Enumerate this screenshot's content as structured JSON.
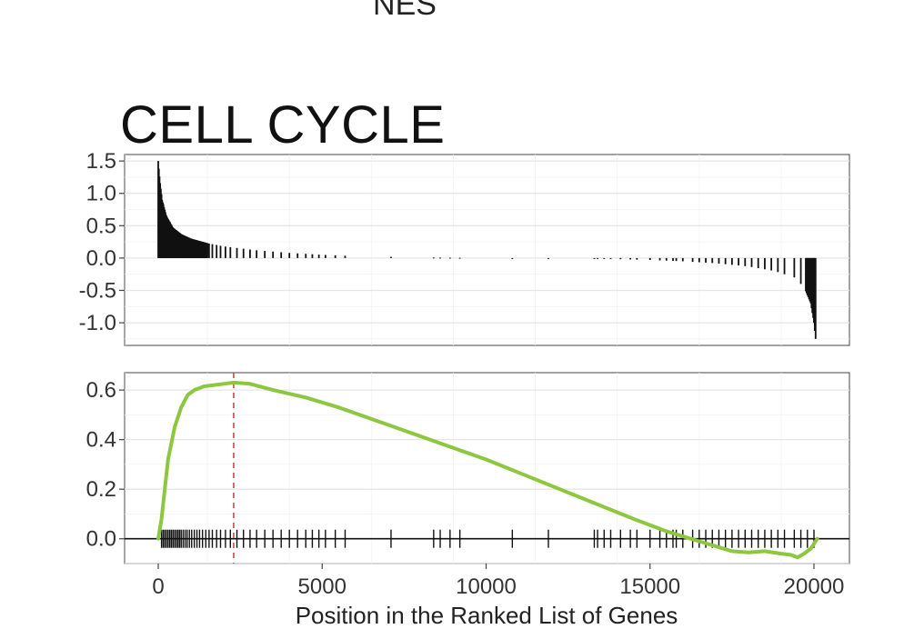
{
  "header": {
    "top_label": "NES"
  },
  "chart_data": {
    "type": "line",
    "title": "CELL CYCLE",
    "xlabel": "Position in the Ranked List of Genes",
    "xlim": [
      -1000,
      21000
    ],
    "x_ticks": [
      0,
      5000,
      10000,
      15000,
      20000
    ],
    "x_tick_labels": [
      "0",
      "5000",
      "10000",
      "15000",
      "20000"
    ],
    "grid": true,
    "panels": [
      {
        "name": "ranked-list-metric",
        "type": "bar",
        "ylim": [
          -1.35,
          1.6
        ],
        "y_ticks": [
          1.5,
          1.0,
          0.5,
          0.0,
          -0.5,
          -1.0
        ],
        "y_tick_labels": [
          "1.5",
          "1.0",
          "0.5",
          "0.0",
          "-0.5",
          "-1.0"
        ],
        "metric_curve": [
          [
            0,
            1.5
          ],
          [
            50,
            1.2
          ],
          [
            120,
            0.9
          ],
          [
            250,
            0.65
          ],
          [
            450,
            0.47
          ],
          [
            700,
            0.37
          ],
          [
            1000,
            0.3
          ],
          [
            1500,
            0.23
          ],
          [
            2000,
            0.18
          ],
          [
            3000,
            0.12
          ],
          [
            4000,
            0.08
          ],
          [
            5000,
            0.05
          ],
          [
            6000,
            0.03
          ],
          [
            8000,
            0.01
          ],
          [
            10000,
            0.0
          ],
          [
            12000,
            0.0
          ],
          [
            13500,
            -0.01
          ],
          [
            15000,
            -0.03
          ],
          [
            16000,
            -0.05
          ],
          [
            17000,
            -0.08
          ],
          [
            18000,
            -0.13
          ],
          [
            18800,
            -0.2
          ],
          [
            19400,
            -0.3
          ],
          [
            19700,
            -0.45
          ],
          [
            19900,
            -0.7
          ],
          [
            20000,
            -1.0
          ],
          [
            20050,
            -1.25
          ]
        ]
      },
      {
        "name": "running-enrichment-score",
        "type": "line",
        "ylim": [
          -0.1,
          0.67
        ],
        "y_ticks": [
          0.6,
          0.4,
          0.2,
          0.0
        ],
        "y_tick_labels": [
          "0.6",
          "0.4",
          "0.2",
          "0.0"
        ],
        "max_es_position": 2300,
        "series": [
          {
            "color": "#8dc63f",
            "x": [
              0,
              100,
              200,
              300,
              500,
              700,
              900,
              1100,
              1400,
              1700,
              2000,
              2300,
              2800,
              3500,
              4500,
              5500,
              7000,
              8500,
              10000,
              11500,
              13000,
              14500,
              15500,
              16500,
              17000,
              17500,
              18000,
              18500,
              19000,
              19300,
              19500,
              19700,
              19900,
              20100
            ],
            "y": [
              0.0,
              0.08,
              0.2,
              0.32,
              0.45,
              0.53,
              0.58,
              0.6,
              0.615,
              0.62,
              0.625,
              0.63,
              0.625,
              0.6,
              0.57,
              0.53,
              0.46,
              0.39,
              0.32,
              0.24,
              0.16,
              0.08,
              0.03,
              -0.01,
              -0.03,
              -0.05,
              -0.055,
              -0.05,
              -0.06,
              -0.065,
              -0.075,
              -0.06,
              -0.04,
              0.0
            ]
          }
        ],
        "gene_hits": [
          100,
          150,
          200,
          250,
          300,
          350,
          400,
          450,
          500,
          550,
          600,
          650,
          700,
          760,
          820,
          880,
          950,
          1020,
          1100,
          1180,
          1260,
          1350,
          1450,
          1550,
          1650,
          1780,
          1900,
          2050,
          2200,
          2400,
          2600,
          2800,
          3000,
          3250,
          3500,
          3750,
          4000,
          4250,
          4500,
          4700,
          4900,
          5100,
          5400,
          5700,
          7100,
          8400,
          8600,
          8900,
          9200,
          10800,
          11900,
          13300,
          13400,
          13600,
          13800,
          14100,
          14400,
          14600,
          15000,
          15300,
          15500,
          15700,
          15800,
          16000,
          16300,
          16500,
          16700,
          16900,
          17100,
          17300,
          17500,
          17700,
          17900,
          18100,
          18300,
          18500,
          18700,
          18900,
          19100,
          19400,
          19600,
          19800,
          20000
        ]
      }
    ]
  }
}
